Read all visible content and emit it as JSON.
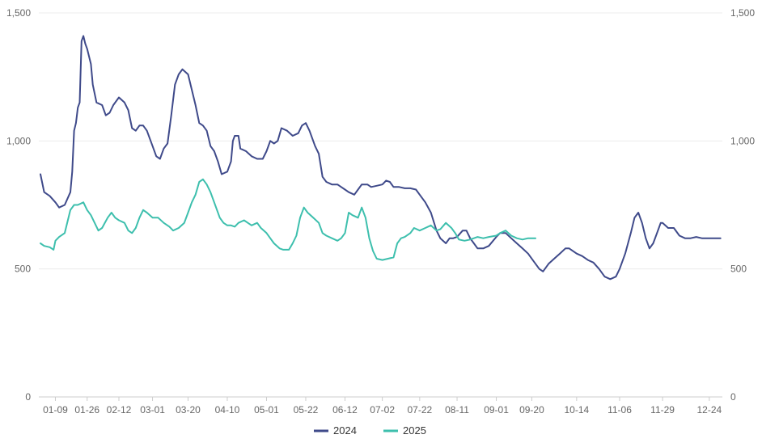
{
  "chart_data": {
    "type": "line",
    "title": "",
    "xlabel": "",
    "ylabel": "",
    "ylim": [
      0,
      1500
    ],
    "y_ticks": [
      0,
      500,
      1000,
      1500
    ],
    "y_tick_labels": [
      "0",
      "500",
      "1,000",
      "1,500"
    ],
    "grid": true,
    "legend_position": "bottom",
    "x_tick_labels": [
      "01-09",
      "01-26",
      "02-12",
      "03-01",
      "03-20",
      "04-10",
      "05-01",
      "05-22",
      "06-12",
      "07-02",
      "07-22",
      "08-11",
      "09-01",
      "09-20",
      "10-14",
      "11-06",
      "11-29",
      "12-24"
    ],
    "series": [
      {
        "name": "2024",
        "color": "#3f4a8a",
        "points": [
          [
            "01-01",
            870
          ],
          [
            "01-03",
            800
          ],
          [
            "01-06",
            785
          ],
          [
            "01-09",
            760
          ],
          [
            "01-11",
            740
          ],
          [
            "01-14",
            750
          ],
          [
            "01-17",
            800
          ],
          [
            "01-18",
            880
          ],
          [
            "01-19",
            1040
          ],
          [
            "01-20",
            1070
          ],
          [
            "01-21",
            1130
          ],
          [
            "01-22",
            1150
          ],
          [
            "01-23",
            1390
          ],
          [
            "01-24",
            1410
          ],
          [
            "01-25",
            1380
          ],
          [
            "01-26",
            1360
          ],
          [
            "01-28",
            1300
          ],
          [
            "01-29",
            1220
          ],
          [
            "01-31",
            1150
          ],
          [
            "02-03",
            1140
          ],
          [
            "02-05",
            1100
          ],
          [
            "02-07",
            1110
          ],
          [
            "02-09",
            1140
          ],
          [
            "02-12",
            1170
          ],
          [
            "02-15",
            1150
          ],
          [
            "02-17",
            1120
          ],
          [
            "02-19",
            1050
          ],
          [
            "02-21",
            1040
          ],
          [
            "02-23",
            1060
          ],
          [
            "02-25",
            1060
          ],
          [
            "02-27",
            1040
          ],
          [
            "03-01",
            980
          ],
          [
            "03-03",
            940
          ],
          [
            "03-05",
            930
          ],
          [
            "03-07",
            970
          ],
          [
            "03-09",
            990
          ],
          [
            "03-11",
            1100
          ],
          [
            "03-13",
            1220
          ],
          [
            "03-15",
            1260
          ],
          [
            "03-17",
            1280
          ],
          [
            "03-20",
            1260
          ],
          [
            "03-22",
            1200
          ],
          [
            "03-24",
            1140
          ],
          [
            "03-26",
            1070
          ],
          [
            "03-28",
            1060
          ],
          [
            "03-30",
            1040
          ],
          [
            "04-01",
            980
          ],
          [
            "04-03",
            960
          ],
          [
            "04-05",
            920
          ],
          [
            "04-07",
            870
          ],
          [
            "04-10",
            880
          ],
          [
            "04-12",
            920
          ],
          [
            "04-13",
            1000
          ],
          [
            "04-14",
            1020
          ],
          [
            "04-16",
            1020
          ],
          [
            "04-17",
            970
          ],
          [
            "04-20",
            960
          ],
          [
            "04-23",
            940
          ],
          [
            "04-26",
            930
          ],
          [
            "04-29",
            930
          ],
          [
            "05-01",
            960
          ],
          [
            "05-03",
            1000
          ],
          [
            "05-05",
            990
          ],
          [
            "05-07",
            1000
          ],
          [
            "05-09",
            1050
          ],
          [
            "05-12",
            1040
          ],
          [
            "05-15",
            1020
          ],
          [
            "05-18",
            1030
          ],
          [
            "05-20",
            1060
          ],
          [
            "05-22",
            1070
          ],
          [
            "05-24",
            1040
          ],
          [
            "05-27",
            980
          ],
          [
            "05-29",
            950
          ],
          [
            "05-31",
            860
          ],
          [
            "06-02",
            840
          ],
          [
            "06-05",
            830
          ],
          [
            "06-08",
            830
          ],
          [
            "06-10",
            820
          ],
          [
            "06-12",
            810
          ],
          [
            "06-14",
            800
          ],
          [
            "06-17",
            790
          ],
          [
            "06-19",
            810
          ],
          [
            "06-21",
            830
          ],
          [
            "06-24",
            830
          ],
          [
            "06-26",
            820
          ],
          [
            "06-29",
            825
          ],
          [
            "07-02",
            830
          ],
          [
            "07-04",
            845
          ],
          [
            "07-06",
            840
          ],
          [
            "07-08",
            820
          ],
          [
            "07-11",
            820
          ],
          [
            "07-14",
            815
          ],
          [
            "07-17",
            815
          ],
          [
            "07-20",
            810
          ],
          [
            "07-22",
            790
          ],
          [
            "07-25",
            760
          ],
          [
            "07-28",
            720
          ],
          [
            "07-31",
            650
          ],
          [
            "08-02",
            620
          ],
          [
            "08-05",
            600
          ],
          [
            "08-07",
            620
          ],
          [
            "08-09",
            620
          ],
          [
            "08-11",
            625
          ],
          [
            "08-14",
            650
          ],
          [
            "08-16",
            650
          ],
          [
            "08-18",
            620
          ],
          [
            "08-20",
            600
          ],
          [
            "08-22",
            580
          ],
          [
            "08-25",
            580
          ],
          [
            "08-28",
            590
          ],
          [
            "09-01",
            625
          ],
          [
            "09-03",
            640
          ],
          [
            "09-06",
            640
          ],
          [
            "09-09",
            620
          ],
          [
            "09-12",
            600
          ],
          [
            "09-15",
            580
          ],
          [
            "09-18",
            560
          ],
          [
            "09-21",
            530
          ],
          [
            "09-24",
            500
          ],
          [
            "09-26",
            490
          ],
          [
            "09-29",
            520
          ],
          [
            "10-02",
            540
          ],
          [
            "10-05",
            560
          ],
          [
            "10-08",
            580
          ],
          [
            "10-10",
            580
          ],
          [
            "10-14",
            560
          ],
          [
            "10-17",
            550
          ],
          [
            "10-20",
            535
          ],
          [
            "10-23",
            525
          ],
          [
            "10-26",
            500
          ],
          [
            "10-29",
            470
          ],
          [
            "11-01",
            460
          ],
          [
            "11-04",
            470
          ],
          [
            "11-06",
            500
          ],
          [
            "11-09",
            560
          ],
          [
            "11-12",
            640
          ],
          [
            "11-14",
            700
          ],
          [
            "11-16",
            720
          ],
          [
            "11-18",
            680
          ],
          [
            "11-20",
            620
          ],
          [
            "11-22",
            580
          ],
          [
            "11-24",
            600
          ],
          [
            "11-26",
            640
          ],
          [
            "11-28",
            680
          ],
          [
            "11-29",
            680
          ],
          [
            "12-02",
            660
          ],
          [
            "12-05",
            660
          ],
          [
            "12-08",
            630
          ],
          [
            "12-11",
            620
          ],
          [
            "12-14",
            620
          ],
          [
            "12-17",
            625
          ],
          [
            "12-20",
            620
          ],
          [
            "12-24",
            620
          ],
          [
            "12-27",
            620
          ],
          [
            "12-30",
            620
          ]
        ]
      },
      {
        "name": "2025",
        "color": "#3dbfad",
        "points": [
          [
            "01-01",
            600
          ],
          [
            "01-03",
            590
          ],
          [
            "01-06",
            585
          ],
          [
            "01-08",
            575
          ],
          [
            "01-09",
            610
          ],
          [
            "01-11",
            625
          ],
          [
            "01-14",
            640
          ],
          [
            "01-17",
            730
          ],
          [
            "01-19",
            750
          ],
          [
            "01-21",
            750
          ],
          [
            "01-24",
            760
          ],
          [
            "01-26",
            730
          ],
          [
            "01-28",
            710
          ],
          [
            "01-30",
            680
          ],
          [
            "02-01",
            650
          ],
          [
            "02-03",
            660
          ],
          [
            "02-06",
            700
          ],
          [
            "02-08",
            720
          ],
          [
            "02-10",
            700
          ],
          [
            "02-12",
            690
          ],
          [
            "02-15",
            680
          ],
          [
            "02-17",
            650
          ],
          [
            "02-19",
            640
          ],
          [
            "02-21",
            660
          ],
          [
            "02-23",
            700
          ],
          [
            "02-25",
            730
          ],
          [
            "02-27",
            720
          ],
          [
            "03-01",
            700
          ],
          [
            "03-04",
            700
          ],
          [
            "03-07",
            680
          ],
          [
            "03-10",
            665
          ],
          [
            "03-12",
            650
          ],
          [
            "03-15",
            660
          ],
          [
            "03-18",
            680
          ],
          [
            "03-20",
            720
          ],
          [
            "03-22",
            760
          ],
          [
            "03-24",
            790
          ],
          [
            "03-26",
            840
          ],
          [
            "03-28",
            850
          ],
          [
            "03-30",
            830
          ],
          [
            "04-01",
            800
          ],
          [
            "04-03",
            760
          ],
          [
            "04-06",
            700
          ],
          [
            "04-08",
            680
          ],
          [
            "04-10",
            670
          ],
          [
            "04-12",
            670
          ],
          [
            "04-14",
            665
          ],
          [
            "04-16",
            680
          ],
          [
            "04-19",
            690
          ],
          [
            "04-21",
            680
          ],
          [
            "04-23",
            670
          ],
          [
            "04-26",
            680
          ],
          [
            "04-28",
            660
          ],
          [
            "05-01",
            640
          ],
          [
            "05-03",
            620
          ],
          [
            "05-05",
            600
          ],
          [
            "05-08",
            580
          ],
          [
            "05-10",
            575
          ],
          [
            "05-13",
            575
          ],
          [
            "05-15",
            600
          ],
          [
            "05-17",
            630
          ],
          [
            "05-19",
            700
          ],
          [
            "05-21",
            740
          ],
          [
            "05-23",
            720
          ],
          [
            "05-26",
            700
          ],
          [
            "05-29",
            680
          ],
          [
            "05-31",
            640
          ],
          [
            "06-02",
            630
          ],
          [
            "06-05",
            620
          ],
          [
            "06-08",
            610
          ],
          [
            "06-10",
            620
          ],
          [
            "06-12",
            640
          ],
          [
            "06-14",
            720
          ],
          [
            "06-16",
            710
          ],
          [
            "06-19",
            700
          ],
          [
            "06-21",
            740
          ],
          [
            "06-23",
            700
          ],
          [
            "06-25",
            620
          ],
          [
            "06-27",
            570
          ],
          [
            "06-29",
            540
          ],
          [
            "07-02",
            535
          ],
          [
            "07-05",
            540
          ],
          [
            "07-08",
            545
          ],
          [
            "07-10",
            600
          ],
          [
            "07-12",
            620
          ],
          [
            "07-14",
            625
          ],
          [
            "07-17",
            640
          ],
          [
            "07-19",
            660
          ],
          [
            "07-22",
            650
          ],
          [
            "07-25",
            660
          ],
          [
            "07-28",
            670
          ],
          [
            "07-31",
            650
          ],
          [
            "08-02",
            655
          ],
          [
            "08-05",
            680
          ],
          [
            "08-08",
            660
          ],
          [
            "08-10",
            640
          ],
          [
            "08-12",
            615
          ],
          [
            "08-15",
            610
          ],
          [
            "08-18",
            615
          ],
          [
            "08-20",
            620
          ],
          [
            "08-22",
            625
          ],
          [
            "08-25",
            620
          ],
          [
            "08-28",
            625
          ],
          [
            "09-01",
            630
          ],
          [
            "09-03",
            640
          ],
          [
            "09-06",
            650
          ],
          [
            "09-09",
            630
          ],
          [
            "09-12",
            620
          ],
          [
            "09-15",
            615
          ],
          [
            "09-18",
            620
          ],
          [
            "09-20",
            620
          ],
          [
            "09-22",
            620
          ]
        ]
      }
    ]
  }
}
